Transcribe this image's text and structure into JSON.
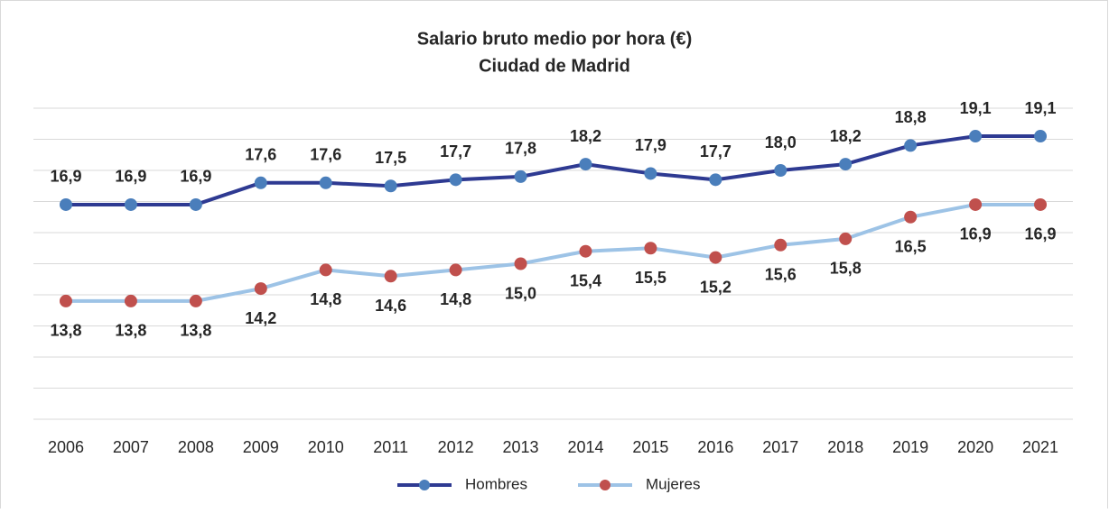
{
  "chart_data": {
    "type": "line",
    "title": "Salario bruto medio por hora (€)",
    "subtitle": "Ciudad de Madrid",
    "categories": [
      "2006",
      "2007",
      "2008",
      "2009",
      "2010",
      "2011",
      "2012",
      "2013",
      "2014",
      "2015",
      "2016",
      "2017",
      "2018",
      "2019",
      "2020",
      "2021"
    ],
    "series": [
      {
        "name": "Hombres",
        "color": "#2e3a92",
        "marker_color": "#4a7ebb",
        "label_position": "above",
        "values": [
          16.9,
          16.9,
          16.9,
          17.6,
          17.6,
          17.5,
          17.7,
          17.8,
          18.2,
          17.9,
          17.7,
          18.0,
          18.2,
          18.8,
          19.1,
          19.1
        ],
        "value_labels": [
          "16,9",
          "16,9",
          "16,9",
          "17,6",
          "17,6",
          "17,5",
          "17,7",
          "17,8",
          "18,2",
          "17,9",
          "17,7",
          "18,0",
          "18,2",
          "18,8",
          "19,1",
          "19,1"
        ]
      },
      {
        "name": "Mujeres",
        "color": "#9dc3e6",
        "marker_color": "#c0504d",
        "label_position": "below",
        "values": [
          13.8,
          13.8,
          13.8,
          14.2,
          14.8,
          14.6,
          14.8,
          15.0,
          15.4,
          15.5,
          15.2,
          15.6,
          15.8,
          16.5,
          16.9,
          16.9
        ],
        "value_labels": [
          "13,8",
          "13,8",
          "13,8",
          "14,2",
          "14,8",
          "14,6",
          "14,8",
          "15,0",
          "15,4",
          "15,5",
          "15,2",
          "15,6",
          "15,8",
          "16,5",
          "16,9",
          "16,9"
        ]
      }
    ],
    "ylim": [
      10,
      20
    ],
    "yticks": [
      10,
      11,
      12,
      13,
      14,
      15,
      16,
      17,
      18,
      19,
      20
    ],
    "grid": true,
    "legend": "bottom"
  }
}
